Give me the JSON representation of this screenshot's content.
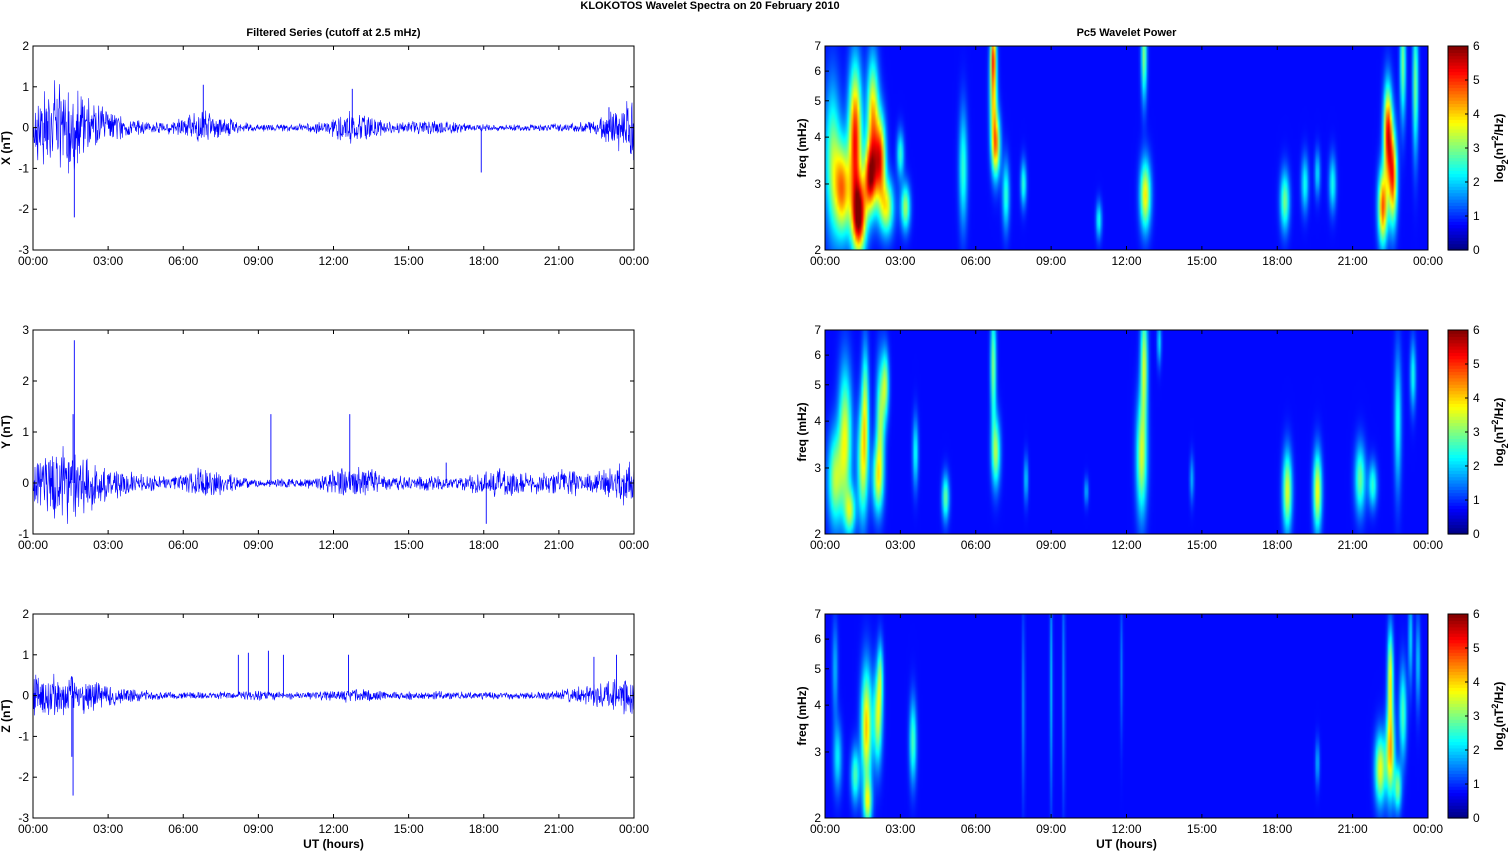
{
  "figure": {
    "suptitle": "KLOKOTOS Wavelet Spectra on 20 February  2010"
  },
  "colors": {
    "series": "#0000ff"
  },
  "chart_data": [
    {
      "id": "x-series",
      "type": "line",
      "title": "Filtered Series (cutoff at 2.5 mHz)",
      "ylabel": "X (nT)",
      "xlabel": "",
      "xticks": [
        "00:00",
        "03:00",
        "06:00",
        "09:00",
        "12:00",
        "15:00",
        "18:00",
        "21:00",
        "00:00"
      ],
      "xlim": [
        0,
        24
      ],
      "ylim": [
        -3,
        2
      ],
      "yticks": [
        -3,
        -2,
        -1,
        0,
        1,
        2
      ],
      "series": [
        {
          "color": "#0000ff"
        }
      ],
      "activity": [
        [
          0.9,
          0.5
        ],
        [
          1.5,
          0.4
        ],
        [
          2.2,
          0.25
        ],
        [
          3.5,
          0.12
        ],
        [
          6.8,
          0.3
        ],
        [
          12.8,
          0.3
        ],
        [
          16,
          0.1
        ],
        [
          23.5,
          0.35
        ]
      ],
      "spikes": [
        [
          1.65,
          -2.2
        ],
        [
          6.8,
          1.05
        ],
        [
          12.75,
          0.95
        ],
        [
          17.9,
          -1.1
        ],
        [
          23,
          0.5
        ]
      ]
    },
    {
      "id": "y-series",
      "type": "line",
      "title": "",
      "ylabel": "Y (nT)",
      "xlabel": "",
      "xticks": [
        "00:00",
        "03:00",
        "06:00",
        "09:00",
        "12:00",
        "15:00",
        "18:00",
        "21:00",
        "00:00"
      ],
      "xlim": [
        0,
        24
      ],
      "ylim": [
        -1,
        3
      ],
      "yticks": [
        -1,
        0,
        1,
        2,
        3
      ],
      "series": [
        {
          "color": "#0000ff"
        }
      ],
      "activity": [
        [
          0.9,
          0.3
        ],
        [
          1.6,
          0.3
        ],
        [
          2.5,
          0.18
        ],
        [
          4,
          0.1
        ],
        [
          6.9,
          0.2
        ],
        [
          12.8,
          0.25
        ],
        [
          15.5,
          0.06
        ],
        [
          18.5,
          0.2
        ],
        [
          21,
          0.18
        ],
        [
          23.5,
          0.22
        ]
      ],
      "spikes": [
        [
          1.65,
          2.8
        ],
        [
          1.6,
          1.35
        ],
        [
          9.5,
          1.35
        ],
        [
          12.65,
          1.35
        ],
        [
          18.1,
          -0.8
        ],
        [
          16.5,
          0.4
        ]
      ]
    },
    {
      "id": "z-series",
      "type": "line",
      "title": "",
      "ylabel": "Z (nT)",
      "xlabel": "UT (hours)",
      "xticks": [
        "00:00",
        "03:00",
        "06:00",
        "09:00",
        "12:00",
        "15:00",
        "18:00",
        "21:00",
        "00:00"
      ],
      "xlim": [
        0,
        24
      ],
      "ylim": [
        -3,
        2
      ],
      "yticks": [
        -3,
        -2,
        -1,
        0,
        1,
        2
      ],
      "series": [
        {
          "color": "#0000ff"
        }
      ],
      "activity": [
        [
          0.8,
          0.2
        ],
        [
          1.7,
          0.2
        ],
        [
          2.5,
          0.12
        ],
        [
          4,
          0.05
        ],
        [
          9,
          0.03
        ],
        [
          12.7,
          0.08
        ],
        [
          16,
          0.02
        ],
        [
          22,
          0.12
        ],
        [
          23.6,
          0.25
        ]
      ],
      "spikes": [
        [
          1.6,
          -2.45
        ],
        [
          1.55,
          -1.5
        ],
        [
          8.2,
          1.0
        ],
        [
          8.6,
          1.05
        ],
        [
          9.4,
          1.1
        ],
        [
          10,
          1.0
        ],
        [
          12.6,
          1.0
        ],
        [
          22.4,
          0.95
        ],
        [
          23.3,
          1.0
        ]
      ]
    },
    {
      "id": "x-wavelet",
      "type": "heatmap",
      "title": "Pc5 Wavelet Power",
      "ylabel": "freq (mHz)",
      "xlabel": "",
      "xticks": [
        "00:00",
        "03:00",
        "06:00",
        "09:00",
        "12:00",
        "15:00",
        "18:00",
        "21:00",
        "00:00"
      ],
      "xlim": [
        0,
        24
      ],
      "ylim": [
        2,
        7
      ],
      "yscale": "log",
      "yticks": [
        2,
        3,
        4,
        5,
        6,
        7
      ],
      "colorbar": {
        "label": "log2(nT^2/Hz)",
        "label_base": "log",
        "label_sub": "2",
        "label_open": "(nT",
        "label_sup": "2",
        "label_close": "/Hz)",
        "ticks": [
          0,
          1,
          2,
          3,
          4,
          5,
          6
        ],
        "range": [
          0,
          6
        ],
        "colormap": "jet"
      },
      "blobs": [
        [
          0.3,
          3.5,
          0.22,
          0.32,
          2.5
        ],
        [
          0.7,
          2.9,
          0.22,
          0.2,
          4.0
        ],
        [
          1.2,
          4.0,
          0.18,
          0.3,
          5.0
        ],
        [
          1.35,
          2.45,
          0.2,
          0.16,
          5.6
        ],
        [
          1.8,
          3.1,
          0.18,
          0.15,
          4.8
        ],
        [
          1.9,
          4.5,
          0.16,
          0.25,
          3.8
        ],
        [
          2.2,
          3.5,
          0.15,
          0.18,
          4.5
        ],
        [
          2.45,
          2.6,
          0.2,
          0.12,
          3.2
        ],
        [
          3.2,
          2.6,
          0.13,
          0.1,
          2.8
        ],
        [
          3.0,
          3.6,
          0.1,
          0.1,
          2.0
        ],
        [
          5.5,
          3.3,
          0.12,
          0.25,
          2.0
        ],
        [
          6.8,
          3.8,
          0.12,
          0.14,
          4.0
        ],
        [
          6.7,
          5.3,
          0.1,
          0.2,
          3.5
        ],
        [
          6.7,
          6.7,
          0.08,
          0.12,
          3.0
        ],
        [
          7.2,
          2.8,
          0.1,
          0.15,
          2.0
        ],
        [
          7.9,
          3.0,
          0.08,
          0.1,
          2.0
        ],
        [
          10.9,
          2.4,
          0.08,
          0.08,
          1.8
        ],
        [
          12.75,
          2.8,
          0.15,
          0.15,
          3.5
        ],
        [
          12.7,
          6.6,
          0.08,
          0.2,
          2.6
        ],
        [
          18.3,
          2.7,
          0.13,
          0.13,
          2.5
        ],
        [
          19.1,
          3.0,
          0.1,
          0.12,
          1.8
        ],
        [
          19.6,
          3.2,
          0.08,
          0.1,
          1.5
        ],
        [
          20.2,
          3.0,
          0.1,
          0.12,
          1.8
        ],
        [
          22.2,
          2.6,
          0.13,
          0.16,
          4.5
        ],
        [
          22.4,
          4.1,
          0.12,
          0.2,
          5.0
        ],
        [
          22.6,
          3.1,
          0.12,
          0.2,
          4.5
        ],
        [
          23.0,
          6.3,
          0.08,
          0.25,
          2.5
        ],
        [
          23.5,
          5.5,
          0.08,
          0.3,
          2.5
        ]
      ]
    },
    {
      "id": "y-wavelet",
      "type": "heatmap",
      "title": "",
      "ylabel": "freq (mHz)",
      "xlabel": "",
      "xticks": [
        "00:00",
        "03:00",
        "06:00",
        "09:00",
        "12:00",
        "15:00",
        "18:00",
        "21:00",
        "00:00"
      ],
      "xlim": [
        0,
        24
      ],
      "ylim": [
        2,
        7
      ],
      "yscale": "log",
      "yticks": [
        2,
        3,
        4,
        5,
        6,
        7
      ],
      "colorbar": {
        "label": "log2(nT^2/Hz)",
        "label_base": "log",
        "label_sub": "2",
        "label_open": "(nT",
        "label_sup": "2",
        "label_close": "/Hz)",
        "ticks": [
          0,
          1,
          2,
          3,
          4,
          5,
          6
        ],
        "range": [
          0,
          6
        ],
        "colormap": "jet"
      },
      "blobs": [
        [
          0.4,
          2.8,
          0.2,
          0.2,
          2.8
        ],
        [
          0.8,
          3.6,
          0.18,
          0.3,
          3.2
        ],
        [
          1.0,
          2.3,
          0.15,
          0.1,
          2.6
        ],
        [
          1.5,
          3.1,
          0.15,
          0.25,
          3.0
        ],
        [
          1.6,
          4.5,
          0.1,
          0.25,
          2.4
        ],
        [
          2.1,
          2.8,
          0.15,
          0.15,
          2.8
        ],
        [
          2.2,
          4.0,
          0.12,
          0.25,
          2.6
        ],
        [
          2.4,
          5.0,
          0.1,
          0.15,
          2.6
        ],
        [
          4.8,
          2.5,
          0.1,
          0.1,
          2.4
        ],
        [
          3.6,
          3.3,
          0.08,
          0.15,
          1.8
        ],
        [
          6.8,
          3.3,
          0.12,
          0.15,
          2.8
        ],
        [
          6.7,
          5.6,
          0.08,
          0.25,
          2.6
        ],
        [
          8.0,
          2.8,
          0.06,
          0.1,
          1.4
        ],
        [
          10.4,
          2.6,
          0.06,
          0.06,
          1.2
        ],
        [
          12.6,
          3.2,
          0.15,
          0.25,
          3.0
        ],
        [
          12.7,
          5.7,
          0.1,
          0.25,
          3.0
        ],
        [
          13.3,
          6.5,
          0.06,
          0.1,
          1.5
        ],
        [
          14.6,
          2.8,
          0.06,
          0.1,
          1.2
        ],
        [
          18.4,
          2.6,
          0.13,
          0.17,
          3.2
        ],
        [
          19.6,
          2.6,
          0.12,
          0.17,
          3.4
        ],
        [
          21.3,
          2.8,
          0.15,
          0.15,
          2.4
        ],
        [
          21.8,
          2.7,
          0.12,
          0.1,
          2.0
        ],
        [
          22.8,
          4.0,
          0.1,
          0.3,
          1.8
        ],
        [
          23.4,
          5.3,
          0.08,
          0.15,
          1.8
        ]
      ]
    },
    {
      "id": "z-wavelet",
      "type": "heatmap",
      "title": "",
      "ylabel": "freq (mHz)",
      "xlabel": "UT (hours)",
      "xticks": [
        "00:00",
        "03:00",
        "06:00",
        "09:00",
        "12:00",
        "15:00",
        "18:00",
        "21:00",
        "00:00"
      ],
      "xlim": [
        0,
        24
      ],
      "ylim": [
        2,
        7
      ],
      "yscale": "log",
      "yticks": [
        2,
        3,
        4,
        5,
        6,
        7
      ],
      "colorbar": {
        "label": "log2(nT^2/Hz)",
        "label_base": "log",
        "label_sub": "2",
        "label_open": "(nT",
        "label_sup": "2",
        "label_close": "/Hz)",
        "ticks": [
          0,
          1,
          2,
          3,
          4,
          5,
          6
        ],
        "range": [
          0,
          6
        ],
        "colormap": "jet"
      },
      "blobs": [
        [
          0.5,
          2.9,
          0.12,
          0.15,
          1.6
        ],
        [
          0.4,
          5.0,
          0.08,
          0.2,
          1.2
        ],
        [
          1.2,
          2.6,
          0.12,
          0.12,
          2.2
        ],
        [
          1.65,
          3.5,
          0.15,
          0.25,
          3.8
        ],
        [
          1.7,
          2.2,
          0.12,
          0.1,
          2.8
        ],
        [
          2.1,
          3.7,
          0.12,
          0.2,
          3.0
        ],
        [
          2.2,
          4.8,
          0.08,
          0.15,
          2.0
        ],
        [
          3.5,
          3.2,
          0.1,
          0.18,
          2.2
        ],
        [
          7.9,
          4.0,
          0.04,
          0.4,
          1.0
        ],
        [
          9.0,
          4.5,
          0.04,
          0.5,
          1.2
        ],
        [
          9.5,
          4.5,
          0.04,
          0.5,
          1.0
        ],
        [
          11.8,
          5.0,
          0.04,
          0.3,
          0.8
        ],
        [
          19.6,
          2.8,
          0.06,
          0.1,
          1.2
        ],
        [
          22.1,
          2.7,
          0.15,
          0.15,
          3.3
        ],
        [
          22.5,
          3.0,
          0.12,
          0.2,
          3.8
        ],
        [
          22.5,
          4.8,
          0.08,
          0.2,
          3.3
        ],
        [
          22.8,
          2.4,
          0.1,
          0.1,
          2.5
        ],
        [
          23.0,
          3.8,
          0.1,
          0.2,
          2.2
        ],
        [
          23.3,
          6.0,
          0.06,
          0.2,
          1.5
        ],
        [
          23.6,
          5.2,
          0.06,
          0.2,
          1.4
        ]
      ]
    }
  ]
}
